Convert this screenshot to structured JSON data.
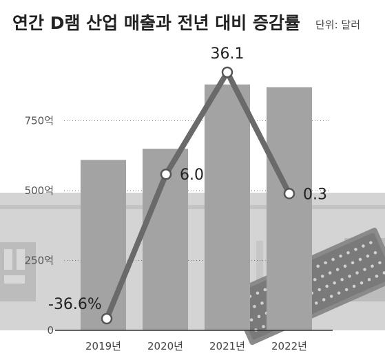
{
  "header": {
    "title": "연간 D램 산업 매출과 전년 대비 증감률",
    "unit_label": "단위: 달러"
  },
  "chart_data": {
    "type": "bar",
    "title": "연간 D램 산업 매출과 전년 대비 증감률",
    "unit": "단위: 달러",
    "categories": [
      "2019년",
      "2020년",
      "2021년",
      "2022년"
    ],
    "y_tick_labels": [
      "0",
      "250억",
      "500억",
      "750억"
    ],
    "y_ticks": [
      0,
      250,
      500,
      750
    ],
    "ylim": [
      0,
      1000
    ],
    "grid": true,
    "series": [
      {
        "type": "bar",
        "unit": "억 달러",
        "values": [
          610,
          650,
          880,
          870
        ],
        "color": "#a3a3a3"
      },
      {
        "type": "line",
        "unit": "%",
        "values": [
          -36.6,
          6.0,
          36.1,
          0.3
        ],
        "labels": [
          "-36.6%",
          "6.0",
          "36.1",
          "0.3"
        ],
        "color": "#6a6a6a"
      }
    ]
  },
  "colors": {
    "bar": "#a3a3a3",
    "line": "#6a6a6a",
    "background_band": "#d3d3d3",
    "axis": "#333333"
  }
}
